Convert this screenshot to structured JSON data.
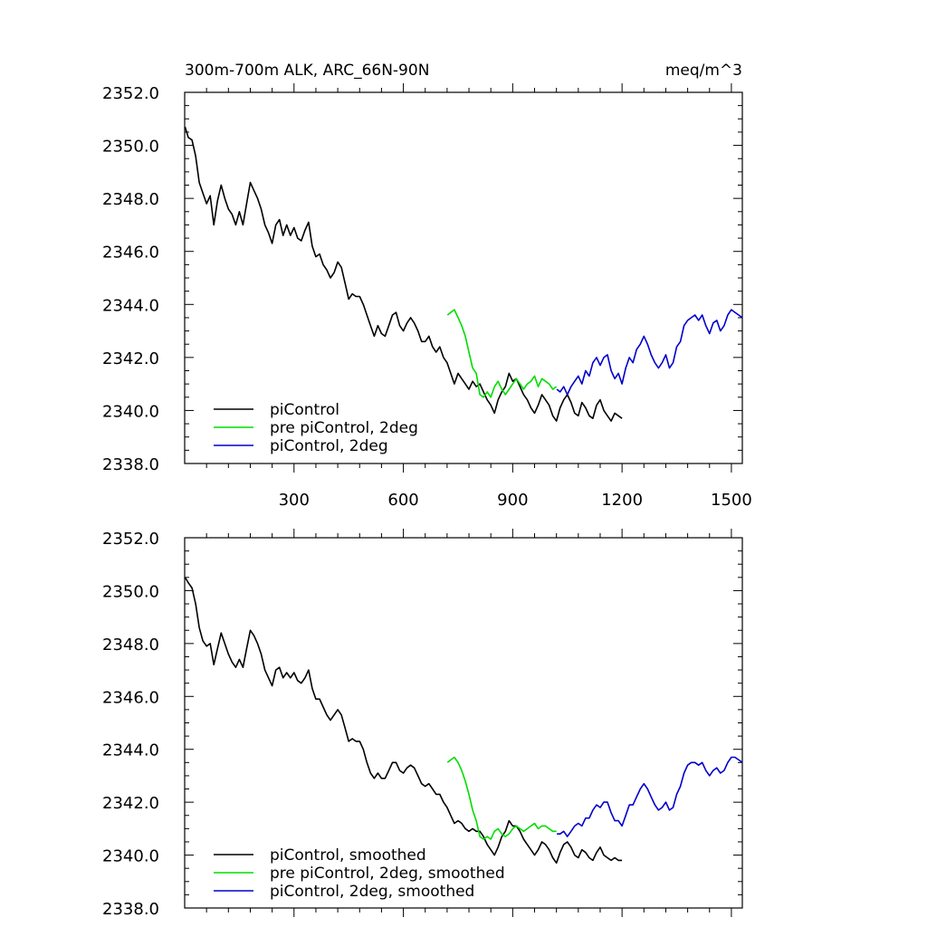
{
  "chart_data": [
    {
      "type": "line",
      "title": "300m-700m ALK, ARC_66N-90N",
      "units": "meq/m^3",
      "xlim": [
        0,
        1530
      ],
      "ylim": [
        2338.0,
        2352.0
      ],
      "xticks": [
        300,
        600,
        900,
        1200,
        1500
      ],
      "xtick_labels": [
        "300",
        "600",
        "900",
        "1200",
        "1500"
      ],
      "yticks": [
        2338,
        2340,
        2342,
        2344,
        2346,
        2348,
        2350,
        2352
      ],
      "ytick_labels": [
        "2338.0",
        "2340.0",
        "2342.0",
        "2344.0",
        "2346.0",
        "2348.0",
        "2350.0",
        "2352.0"
      ],
      "legend_position": "bottom-left",
      "series": [
        {
          "name": "piControl",
          "color": "#000000",
          "x": [
            1,
            10,
            20,
            30,
            40,
            50,
            60,
            70,
            80,
            90,
            100,
            110,
            120,
            130,
            140,
            150,
            160,
            170,
            180,
            190,
            200,
            210,
            220,
            230,
            240,
            250,
            260,
            270,
            280,
            290,
            300,
            310,
            320,
            330,
            340,
            350,
            360,
            370,
            380,
            390,
            400,
            410,
            420,
            430,
            440,
            450,
            460,
            470,
            480,
            490,
            500,
            510,
            520,
            530,
            540,
            550,
            560,
            570,
            580,
            590,
            600,
            610,
            620,
            630,
            640,
            650,
            660,
            670,
            680,
            690,
            700,
            710,
            720,
            730,
            740,
            750,
            760,
            770,
            780,
            790,
            800,
            810,
            820,
            830,
            840,
            850,
            860,
            870,
            880,
            890,
            900,
            910,
            920,
            930,
            940,
            950,
            960,
            970,
            980,
            990,
            1000,
            1010,
            1020,
            1030,
            1040,
            1050,
            1060,
            1070,
            1080,
            1090,
            1100,
            1110,
            1120,
            1130,
            1140,
            1150,
            1160,
            1170,
            1180,
            1190,
            1200
          ],
          "y": [
            2350.7,
            2350.3,
            2350.2,
            2349.6,
            2348.6,
            2348.2,
            2347.8,
            2348.1,
            2347.0,
            2347.9,
            2348.5,
            2348.0,
            2347.6,
            2347.4,
            2347.0,
            2347.5,
            2347.0,
            2347.8,
            2348.6,
            2348.3,
            2348.0,
            2347.6,
            2347.0,
            2346.7,
            2346.3,
            2347.0,
            2347.2,
            2346.6,
            2347.0,
            2346.6,
            2346.9,
            2346.5,
            2346.4,
            2346.8,
            2347.1,
            2346.2,
            2345.8,
            2345.9,
            2345.5,
            2345.3,
            2345.0,
            2345.2,
            2345.6,
            2345.4,
            2344.8,
            2344.2,
            2344.4,
            2344.3,
            2344.3,
            2344.0,
            2343.6,
            2343.2,
            2342.8,
            2343.2,
            2342.9,
            2342.8,
            2343.2,
            2343.6,
            2343.7,
            2343.2,
            2343.0,
            2343.3,
            2343.5,
            2343.3,
            2343.0,
            2342.6,
            2342.6,
            2342.8,
            2342.4,
            2342.2,
            2342.4,
            2342.0,
            2341.8,
            2341.4,
            2341.0,
            2341.4,
            2341.2,
            2341.0,
            2340.8,
            2341.1,
            2340.9,
            2341.0,
            2340.7,
            2340.4,
            2340.2,
            2339.9,
            2340.4,
            2340.7,
            2340.9,
            2341.4,
            2341.1,
            2341.2,
            2340.9,
            2340.6,
            2340.4,
            2340.1,
            2339.9,
            2340.2,
            2340.6,
            2340.4,
            2340.2,
            2339.8,
            2339.6,
            2340.1,
            2340.4,
            2340.6,
            2340.3,
            2339.9,
            2339.8,
            2340.3,
            2340.1,
            2339.8,
            2339.7,
            2340.2,
            2340.4,
            2340.0,
            2339.8,
            2339.6,
            2339.9,
            2339.8,
            2339.7
          ]
        },
        {
          "name": "pre piControl, 2deg",
          "color": "#00dd00",
          "x": [
            721,
            730,
            740,
            750,
            760,
            770,
            780,
            790,
            800,
            810,
            820,
            830,
            840,
            850,
            860,
            870,
            880,
            890,
            900,
            910,
            920,
            930,
            940,
            950,
            960,
            970,
            980,
            990,
            1000,
            1010,
            1020
          ],
          "y": [
            2343.6,
            2343.7,
            2343.8,
            2343.5,
            2343.2,
            2342.8,
            2342.2,
            2341.6,
            2341.4,
            2340.6,
            2340.5,
            2340.7,
            2340.5,
            2340.9,
            2341.1,
            2340.8,
            2340.6,
            2340.8,
            2341.0,
            2341.2,
            2341.0,
            2340.8,
            2341.0,
            2341.1,
            2341.3,
            2340.9,
            2341.2,
            2341.1,
            2341.0,
            2340.8,
            2340.9
          ]
        },
        {
          "name": "piControl, 2deg",
          "color": "#0000cc",
          "x": [
            1021,
            1030,
            1040,
            1050,
            1060,
            1070,
            1080,
            1090,
            1100,
            1110,
            1120,
            1130,
            1140,
            1150,
            1160,
            1170,
            1180,
            1190,
            1200,
            1210,
            1220,
            1230,
            1240,
            1250,
            1260,
            1270,
            1280,
            1290,
            1300,
            1310,
            1320,
            1330,
            1340,
            1350,
            1360,
            1370,
            1380,
            1390,
            1400,
            1410,
            1420,
            1430,
            1440,
            1450,
            1460,
            1470,
            1480,
            1490,
            1500,
            1510,
            1520,
            1530
          ],
          "y": [
            2340.8,
            2340.7,
            2340.9,
            2340.6,
            2340.9,
            2341.1,
            2341.3,
            2341.0,
            2341.5,
            2341.3,
            2341.8,
            2342.0,
            2341.7,
            2342.0,
            2342.1,
            2341.5,
            2341.2,
            2341.4,
            2341.0,
            2341.6,
            2342.0,
            2341.8,
            2342.3,
            2342.5,
            2342.8,
            2342.5,
            2342.1,
            2341.8,
            2341.6,
            2341.8,
            2342.1,
            2341.6,
            2341.8,
            2342.4,
            2342.6,
            2343.2,
            2343.4,
            2343.5,
            2343.6,
            2343.4,
            2343.6,
            2343.2,
            2342.9,
            2343.3,
            2343.4,
            2343.0,
            2343.2,
            2343.6,
            2343.8,
            2343.7,
            2343.6,
            2343.5
          ]
        }
      ]
    },
    {
      "type": "line",
      "title": "",
      "xlim": [
        0,
        1530
      ],
      "ylim": [
        2338.0,
        2352.0
      ],
      "xticks": [
        300,
        600,
        900,
        1200,
        1500
      ],
      "yticks": [
        2338,
        2340,
        2342,
        2344,
        2346,
        2348,
        2350,
        2352
      ],
      "ytick_labels": [
        "2338.0",
        "2340.0",
        "2342.0",
        "2344.0",
        "2346.0",
        "2348.0",
        "2350.0",
        "2352.0"
      ],
      "legend_position": "bottom-left",
      "series": [
        {
          "name": "piControl, smoothed",
          "color": "#000000",
          "x": [
            1,
            10,
            20,
            30,
            40,
            50,
            60,
            70,
            80,
            90,
            100,
            110,
            120,
            130,
            140,
            150,
            160,
            170,
            180,
            190,
            200,
            210,
            220,
            230,
            240,
            250,
            260,
            270,
            280,
            290,
            300,
            310,
            320,
            330,
            340,
            350,
            360,
            370,
            380,
            390,
            400,
            410,
            420,
            430,
            440,
            450,
            460,
            470,
            480,
            490,
            500,
            510,
            520,
            530,
            540,
            550,
            560,
            570,
            580,
            590,
            600,
            610,
            620,
            630,
            640,
            650,
            660,
            670,
            680,
            690,
            700,
            710,
            720,
            730,
            740,
            750,
            760,
            770,
            780,
            790,
            800,
            810,
            820,
            830,
            840,
            850,
            860,
            870,
            880,
            890,
            900,
            910,
            920,
            930,
            940,
            950,
            960,
            970,
            980,
            990,
            1000,
            1010,
            1020,
            1030,
            1040,
            1050,
            1060,
            1070,
            1080,
            1090,
            1100,
            1110,
            1120,
            1130,
            1140,
            1150,
            1160,
            1170,
            1180,
            1190,
            1200
          ],
          "y": [
            2350.5,
            2350.3,
            2350.1,
            2349.5,
            2348.6,
            2348.1,
            2347.9,
            2348.0,
            2347.2,
            2347.8,
            2348.4,
            2348.0,
            2347.6,
            2347.3,
            2347.1,
            2347.4,
            2347.1,
            2347.8,
            2348.5,
            2348.3,
            2348.0,
            2347.6,
            2347.0,
            2346.7,
            2346.4,
            2347.0,
            2347.1,
            2346.7,
            2346.9,
            2346.7,
            2346.9,
            2346.6,
            2346.5,
            2346.7,
            2347.0,
            2346.3,
            2345.9,
            2345.9,
            2345.6,
            2345.3,
            2345.1,
            2345.3,
            2345.5,
            2345.3,
            2344.8,
            2344.3,
            2344.4,
            2344.3,
            2344.3,
            2344.0,
            2343.5,
            2343.1,
            2342.9,
            2343.1,
            2342.9,
            2342.9,
            2343.2,
            2343.5,
            2343.5,
            2343.2,
            2343.1,
            2343.3,
            2343.4,
            2343.3,
            2343.0,
            2342.7,
            2342.6,
            2342.7,
            2342.5,
            2342.3,
            2342.3,
            2342.0,
            2341.8,
            2341.5,
            2341.2,
            2341.3,
            2341.2,
            2341.0,
            2340.9,
            2341.0,
            2340.9,
            2340.9,
            2340.7,
            2340.4,
            2340.2,
            2340.0,
            2340.3,
            2340.7,
            2340.9,
            2341.3,
            2341.1,
            2341.1,
            2340.9,
            2340.6,
            2340.4,
            2340.2,
            2340.0,
            2340.2,
            2340.5,
            2340.4,
            2340.2,
            2339.9,
            2339.7,
            2340.1,
            2340.4,
            2340.5,
            2340.3,
            2340.0,
            2339.9,
            2340.2,
            2340.1,
            2339.9,
            2339.8,
            2340.1,
            2340.3,
            2340.0,
            2339.9,
            2339.8,
            2339.9,
            2339.8,
            2339.8
          ]
        },
        {
          "name": "pre piControl, 2deg, smoothed",
          "color": "#00dd00",
          "x": [
            721,
            730,
            740,
            750,
            760,
            770,
            780,
            790,
            800,
            810,
            820,
            830,
            840,
            850,
            860,
            870,
            880,
            890,
            900,
            910,
            920,
            930,
            940,
            950,
            960,
            970,
            980,
            990,
            1000,
            1010,
            1020
          ],
          "y": [
            2343.5,
            2343.6,
            2343.7,
            2343.5,
            2343.2,
            2342.8,
            2342.3,
            2341.7,
            2341.3,
            2340.7,
            2340.6,
            2340.7,
            2340.6,
            2340.9,
            2341.0,
            2340.8,
            2340.7,
            2340.8,
            2341.0,
            2341.1,
            2341.0,
            2340.9,
            2341.0,
            2341.1,
            2341.2,
            2341.0,
            2341.1,
            2341.1,
            2341.0,
            2340.9,
            2340.9
          ]
        },
        {
          "name": "piControl, 2deg, smoothed",
          "color": "#0000cc",
          "x": [
            1021,
            1030,
            1040,
            1050,
            1060,
            1070,
            1080,
            1090,
            1100,
            1110,
            1120,
            1130,
            1140,
            1150,
            1160,
            1170,
            1180,
            1190,
            1200,
            1210,
            1220,
            1230,
            1240,
            1250,
            1260,
            1270,
            1280,
            1290,
            1300,
            1310,
            1320,
            1330,
            1340,
            1350,
            1360,
            1370,
            1380,
            1390,
            1400,
            1410,
            1420,
            1430,
            1440,
            1450,
            1460,
            1470,
            1480,
            1490,
            1500,
            1510,
            1520,
            1530
          ],
          "y": [
            2340.8,
            2340.8,
            2340.9,
            2340.7,
            2340.9,
            2341.1,
            2341.2,
            2341.1,
            2341.4,
            2341.4,
            2341.7,
            2341.9,
            2341.8,
            2342.0,
            2342.0,
            2341.6,
            2341.3,
            2341.3,
            2341.1,
            2341.5,
            2341.9,
            2341.9,
            2342.2,
            2342.5,
            2342.7,
            2342.5,
            2342.2,
            2341.9,
            2341.7,
            2341.8,
            2342.0,
            2341.7,
            2341.8,
            2342.3,
            2342.6,
            2343.1,
            2343.4,
            2343.5,
            2343.5,
            2343.4,
            2343.5,
            2343.2,
            2343.0,
            2343.2,
            2343.3,
            2343.1,
            2343.2,
            2343.5,
            2343.7,
            2343.7,
            2343.6,
            2343.5
          ]
        }
      ]
    }
  ]
}
